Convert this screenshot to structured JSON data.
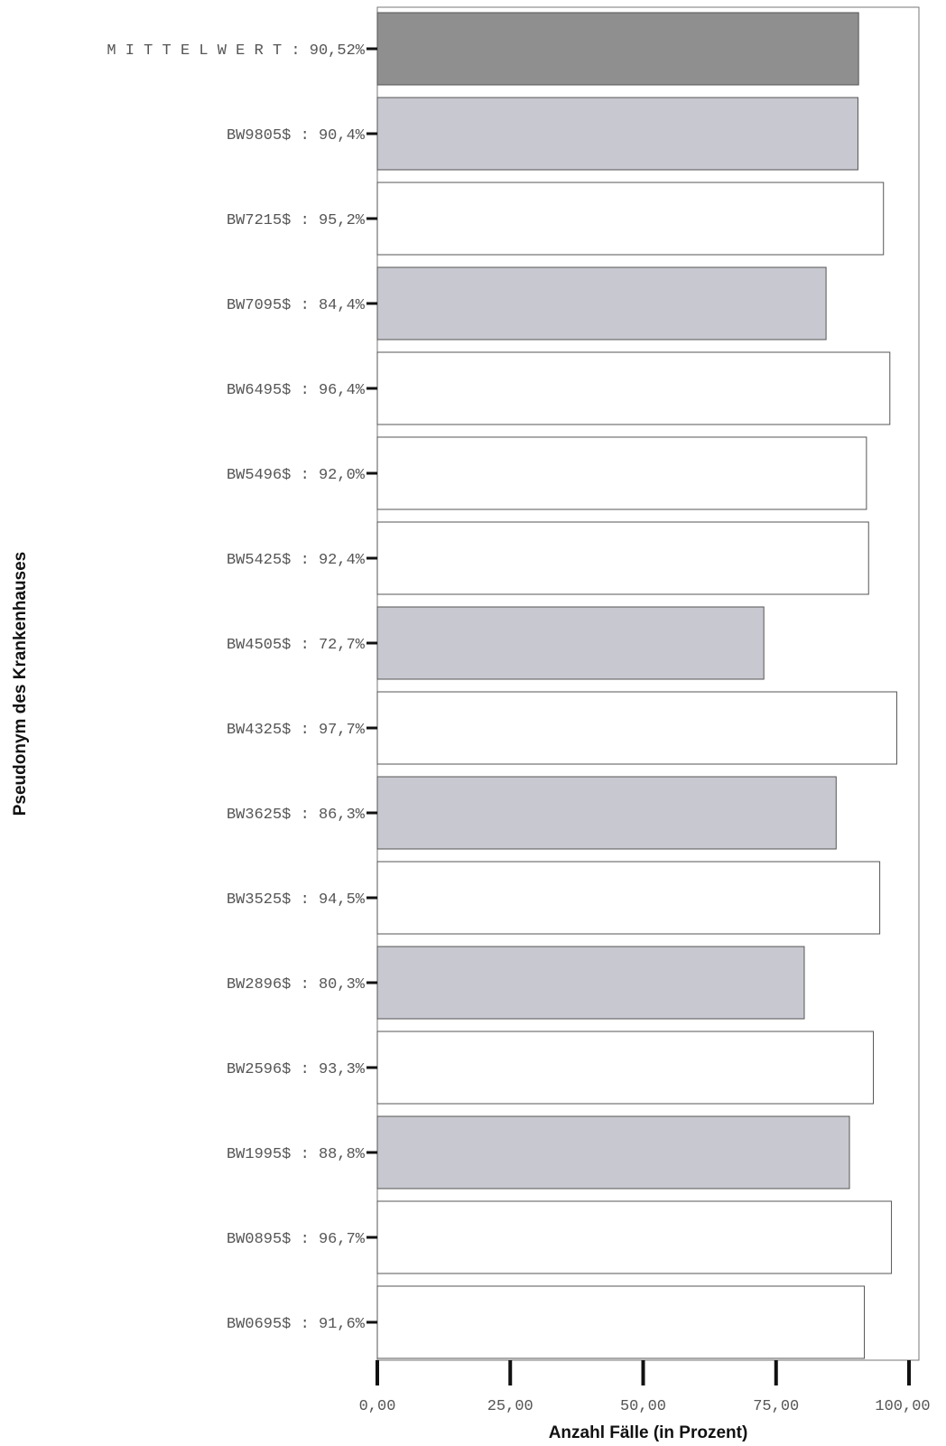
{
  "chart_data": {
    "type": "bar",
    "orientation": "horizontal",
    "xlabel": "Anzahl Fälle (in Prozent)",
    "ylabel": "Pseudonym des Krankenhauses",
    "xlim": [
      0,
      100
    ],
    "x_ticks": [
      "0,00",
      "25,00",
      "50,00",
      "75,00",
      "100,00"
    ],
    "x_tick_values": [
      0,
      25,
      50,
      75,
      100
    ],
    "grid": false,
    "colors": {
      "mean": "#8f8f8f",
      "below_mean": "#c8c8d0",
      "above_mean": "#ffffff",
      "outline": "#555555"
    },
    "bars": [
      {
        "label": "M I T T E L W E R T  : 90,52%",
        "value": 90.52,
        "group": "mean"
      },
      {
        "label": "BW9805$ :  90,4%",
        "value": 90.4,
        "group": "below_mean"
      },
      {
        "label": "BW7215$ :  95,2%",
        "value": 95.2,
        "group": "above_mean"
      },
      {
        "label": "BW7095$ :  84,4%",
        "value": 84.4,
        "group": "below_mean"
      },
      {
        "label": "BW6495$ :  96,4%",
        "value": 96.4,
        "group": "above_mean"
      },
      {
        "label": "BW5496$ :  92,0%",
        "value": 92.0,
        "group": "above_mean"
      },
      {
        "label": "BW5425$ :  92,4%",
        "value": 92.4,
        "group": "above_mean"
      },
      {
        "label": "BW4505$ :  72,7%",
        "value": 72.7,
        "group": "below_mean"
      },
      {
        "label": "BW4325$ :  97,7%",
        "value": 97.7,
        "group": "above_mean"
      },
      {
        "label": "BW3625$ :  86,3%",
        "value": 86.3,
        "group": "below_mean"
      },
      {
        "label": "BW3525$ :  94,5%",
        "value": 94.5,
        "group": "above_mean"
      },
      {
        "label": "BW2896$ :  80,3%",
        "value": 80.3,
        "group": "below_mean"
      },
      {
        "label": "BW2596$ :  93,3%",
        "value": 93.3,
        "group": "above_mean"
      },
      {
        "label": "BW1995$ :  88,8%",
        "value": 88.8,
        "group": "below_mean"
      },
      {
        "label": "BW0895$ :  96,7%",
        "value": 96.7,
        "group": "above_mean"
      },
      {
        "label": "BW0695$ :  91,6%",
        "value": 91.6,
        "group": "above_mean"
      }
    ]
  }
}
